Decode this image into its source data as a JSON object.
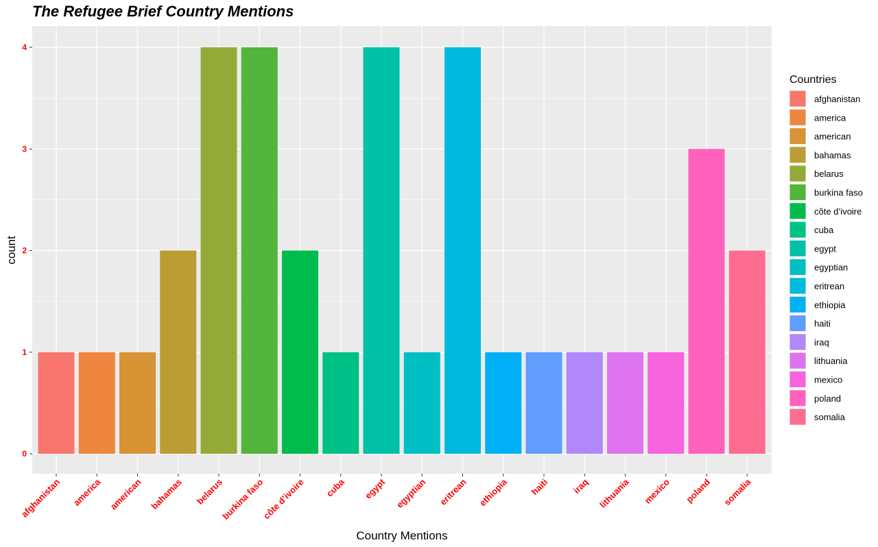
{
  "chart_data": {
    "type": "bar",
    "title": "The Refugee Brief Country Mentions",
    "xlabel": "Country Mentions",
    "ylabel": "count",
    "categories": [
      "afghanistan",
      "america",
      "american",
      "bahamas",
      "belarus",
      "burkina faso",
      "côte d’ivoire",
      "cuba",
      "egypt",
      "egyptian",
      "eritrean",
      "ethiopia",
      "haiti",
      "iraq",
      "lithuania",
      "mexico",
      "poland",
      "somalia"
    ],
    "values": [
      1,
      1,
      1,
      2,
      4,
      4,
      2,
      1,
      4,
      1,
      4,
      1,
      1,
      1,
      1,
      1,
      3,
      2
    ],
    "colors": [
      "#F8766D",
      "#EE8640",
      "#D89335",
      "#BB9D33",
      "#93AB36",
      "#53B53B",
      "#00BB4E",
      "#00C086",
      "#00C1A7",
      "#00BFC4",
      "#00BADE",
      "#00B0F6",
      "#619CFF",
      "#B187FA",
      "#DE73F0",
      "#F863DE",
      "#FF62BC",
      "#FF6C91"
    ],
    "ylim": [
      0,
      4
    ],
    "yticks": [
      0,
      1,
      2,
      3,
      4
    ],
    "grid": true,
    "tick_label_color": "#FF0000",
    "panel_background": "#EBEBEB",
    "legend": {
      "title": "Countries",
      "position": "right"
    }
  }
}
